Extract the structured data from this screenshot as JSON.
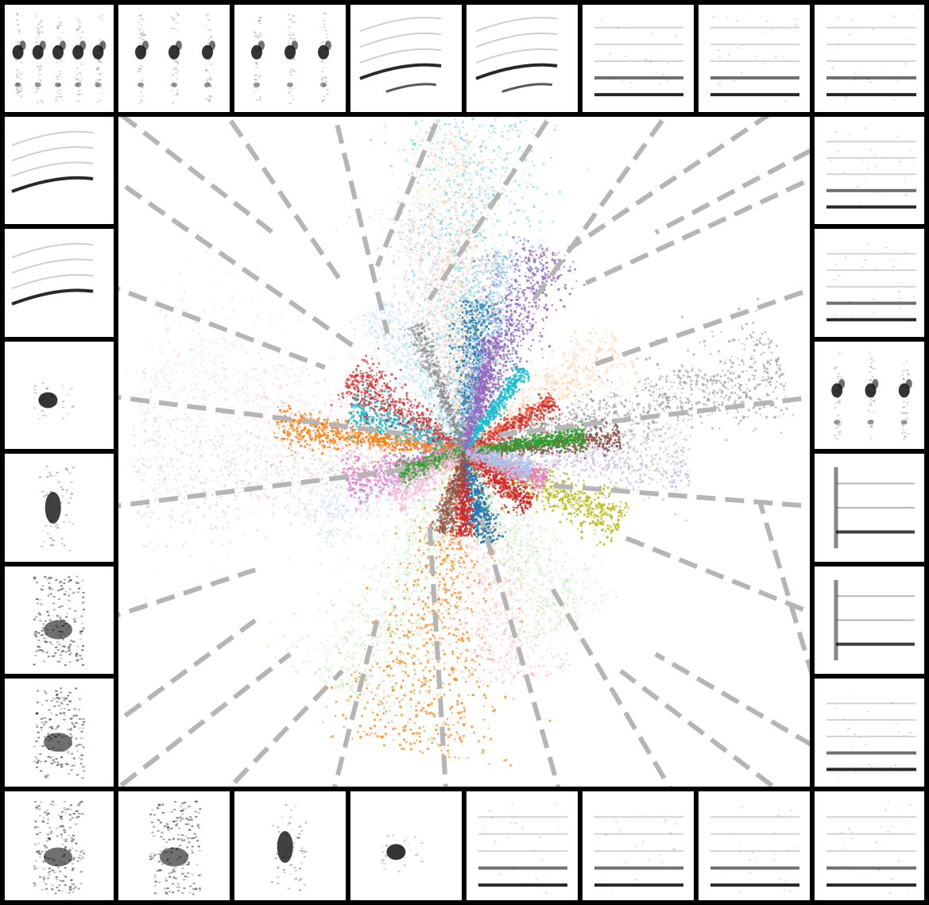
{
  "chart_data": {
    "type": "scatter",
    "title": "",
    "xlabel": "",
    "ylabel": "",
    "grid": false,
    "legend": "none",
    "axes_visible": false,
    "background": "#ffffff",
    "frame_color": "#000000",
    "connector_color": "#b5b5b5",
    "center": [
      0,
      0
    ],
    "xlim": [
      -10,
      10
    ],
    "ylim": [
      -10,
      10
    ],
    "series": [
      {
        "color": "#1f77b4",
        "angle": 85,
        "length": 4.5,
        "spread": 0.3,
        "opacity": 0.9
      },
      {
        "color": "#aec7e8",
        "angle": 80,
        "length": 6.0,
        "spread": 0.35,
        "opacity": 0.8
      },
      {
        "color": "#9467bd",
        "angle": 68,
        "length": 6.5,
        "spread": 0.4,
        "opacity": 0.8
      },
      {
        "color": "#c5b0d5",
        "angle": 100,
        "length": 7.5,
        "spread": 0.5,
        "opacity": 0.35
      },
      {
        "color": "#17becf",
        "angle": 88,
        "length": 10,
        "spread": 0.6,
        "opacity": 0.35
      },
      {
        "color": "#ffbb78",
        "angle": 92,
        "length": 9.5,
        "spread": 0.4,
        "opacity": 0.3
      },
      {
        "color": "#17becf",
        "angle": 160,
        "length": 3.5,
        "spread": 0.45,
        "opacity": 0.9
      },
      {
        "color": "#d62728",
        "angle": 145,
        "length": 4.0,
        "spread": 0.4,
        "opacity": 0.75
      },
      {
        "color": "#ff7f0e",
        "angle": 172,
        "length": 5.5,
        "spread": 0.25,
        "opacity": 0.85
      },
      {
        "color": "#f7b6d2",
        "angle": 165,
        "length": 9.5,
        "spread": 0.8,
        "opacity": 0.3
      },
      {
        "color": "#c49c94",
        "angle": 185,
        "length": 9.5,
        "spread": 0.7,
        "opacity": 0.25
      },
      {
        "color": "#e377c2",
        "angle": 195,
        "length": 3.5,
        "spread": 0.4,
        "opacity": 0.8
      },
      {
        "color": "#ff7f0e",
        "angle": 260,
        "length": 9.0,
        "spread": 0.7,
        "opacity": 0.7
      },
      {
        "color": "#ff9896",
        "angle": 280,
        "length": 7.0,
        "spread": 0.7,
        "opacity": 0.35
      },
      {
        "color": "#98df8a",
        "angle": 245,
        "length": 8.0,
        "spread": 0.7,
        "opacity": 0.3
      },
      {
        "color": "#d62728",
        "angle": 270,
        "length": 2.5,
        "spread": 0.25,
        "opacity": 0.9
      },
      {
        "color": "#1f77b4",
        "angle": 285,
        "length": 2.8,
        "spread": 0.3,
        "opacity": 0.9
      },
      {
        "color": "#bcbd22",
        "angle": 335,
        "length": 5.0,
        "spread": 0.35,
        "opacity": 0.85
      },
      {
        "color": "#d62728",
        "angle": 320,
        "length": 2.5,
        "spread": 0.35,
        "opacity": 0.9
      },
      {
        "color": "#c5b0d5",
        "angle": 358,
        "length": 6.5,
        "spread": 0.5,
        "opacity": 0.6
      },
      {
        "color": "#8c564b",
        "angle": 5,
        "length": 4.5,
        "spread": 0.2,
        "opacity": 0.9
      },
      {
        "color": "#7f7f7f",
        "angle": 15,
        "length": 9.5,
        "spread": 0.4,
        "opacity": 0.5
      },
      {
        "color": "#2ca02c",
        "angle": 8,
        "length": 3.5,
        "spread": 0.2,
        "opacity": 0.85
      },
      {
        "color": "#d62728",
        "angle": 30,
        "length": 3.0,
        "spread": 0.25,
        "opacity": 0.8
      },
      {
        "color": "#ffbb78",
        "angle": 35,
        "length": 5.5,
        "spread": 0.5,
        "opacity": 0.35
      },
      {
        "color": "#17becf",
        "angle": 55,
        "length": 3.0,
        "spread": 0.2,
        "opacity": 0.85
      },
      {
        "color": "#98df8a",
        "angle": 300,
        "length": 6.0,
        "spread": 0.6,
        "opacity": 0.3
      },
      {
        "color": "#9edae5",
        "angle": 120,
        "length": 5.0,
        "spread": 0.4,
        "opacity": 0.4
      },
      {
        "color": "#7f7f7f",
        "angle": 110,
        "length": 4.0,
        "spread": 0.2,
        "opacity": 0.5
      },
      {
        "color": "#aec7e8",
        "angle": 205,
        "length": 5.0,
        "spread": 0.5,
        "opacity": 0.3
      },
      {
        "color": "#e377c2",
        "angle": 340,
        "length": 2.5,
        "spread": 0.3,
        "opacity": 0.7
      },
      {
        "color": "#aec7e8",
        "angle": 345,
        "length": 2.0,
        "spread": 0.35,
        "opacity": 0.8
      },
      {
        "color": "#9467bd",
        "angle": 75,
        "length": 3.5,
        "spread": 0.2,
        "opacity": 0.7
      },
      {
        "color": "#2ca02c",
        "angle": 200,
        "length": 2.0,
        "spread": 0.3,
        "opacity": 0.7
      },
      {
        "color": "#f7b6d2",
        "angle": 215,
        "length": 2.5,
        "spread": 0.4,
        "opacity": 0.6
      },
      {
        "color": "#8c564b",
        "angle": 255,
        "length": 2.5,
        "spread": 0.25,
        "opacity": 0.7
      }
    ],
    "thumbnails": [
      {
        "edge": "top",
        "slot": 0,
        "kind": "harmonic-columns",
        "points_to": [
          -5.5,
          6.5
        ]
      },
      {
        "edge": "top",
        "slot": 1,
        "kind": "harmonic-columns",
        "points_to": [
          -3.5,
          5.0
        ]
      },
      {
        "edge": "top",
        "slot": 2,
        "kind": "harmonic-columns",
        "points_to": [
          -2.2,
          3.5
        ]
      },
      {
        "edge": "top",
        "slot": 3,
        "kind": "rising-harmonics",
        "points_to": [
          -2.5,
          5.5
        ]
      },
      {
        "edge": "top",
        "slot": 4,
        "kind": "rising-harmonics",
        "points_to": [
          -1.0,
          4.5
        ]
      },
      {
        "edge": "top",
        "slot": 5,
        "kind": "flat-harmonics",
        "points_to": [
          2.0,
          4.5
        ]
      },
      {
        "edge": "top",
        "slot": 6,
        "kind": "flat-harmonics",
        "points_to": [
          3.0,
          6.0
        ]
      },
      {
        "edge": "top",
        "slot": 7,
        "kind": "flat-harmonics",
        "points_to": [
          5.5,
          6.5
        ]
      },
      {
        "edge": "left",
        "slot": 1,
        "kind": "rising-harmonics",
        "points_to": [
          -3.0,
          3.0
        ]
      },
      {
        "edge": "left",
        "slot": 2,
        "kind": "rising-harmonics",
        "points_to": [
          -4.0,
          2.5
        ]
      },
      {
        "edge": "left",
        "slot": 3,
        "kind": "blob",
        "points_to": [
          -1.5,
          0.5
        ]
      },
      {
        "edge": "left",
        "slot": 4,
        "kind": "vertical-blob",
        "points_to": [
          -1.5,
          -0.5
        ]
      },
      {
        "edge": "left",
        "slot": 5,
        "kind": "noisy-column",
        "points_to": [
          -6.0,
          -3.5
        ]
      },
      {
        "edge": "left",
        "slot": 6,
        "kind": "noisy-column",
        "points_to": [
          -6.0,
          -5.0
        ]
      },
      {
        "edge": "bottom",
        "slot": 0,
        "kind": "noisy-column",
        "points_to": [
          -5.0,
          -6.0
        ]
      },
      {
        "edge": "bottom",
        "slot": 1,
        "kind": "noisy-column",
        "points_to": [
          -3.5,
          -6.5
        ]
      },
      {
        "edge": "bottom",
        "slot": 2,
        "kind": "vertical-blob",
        "points_to": [
          -2.5,
          -5.0
        ]
      },
      {
        "edge": "bottom",
        "slot": 3,
        "kind": "blob",
        "points_to": [
          -1.0,
          -2.0
        ]
      },
      {
        "edge": "bottom",
        "slot": 4,
        "kind": "flat-harmonics",
        "points_to": [
          0.5,
          -2.0
        ]
      },
      {
        "edge": "bottom",
        "slot": 5,
        "kind": "flat-harmonics",
        "points_to": [
          2.5,
          -4.0
        ]
      },
      {
        "edge": "bottom",
        "slot": 6,
        "kind": "flat-harmonics",
        "points_to": [
          4.5,
          -6.5
        ]
      },
      {
        "edge": "bottom",
        "slot": 7,
        "kind": "flat-harmonics",
        "points_to": [
          5.5,
          -6.0
        ]
      },
      {
        "edge": "right",
        "slot": 1,
        "kind": "flat-harmonics",
        "points_to": [
          3.5,
          5.0
        ]
      },
      {
        "edge": "right",
        "slot": 2,
        "kind": "flat-harmonics",
        "points_to": [
          3.5,
          2.5
        ]
      },
      {
        "edge": "right",
        "slot": 3,
        "kind": "harmonic-columns",
        "points_to": [
          1.0,
          0.5
        ]
      },
      {
        "edge": "right",
        "slot": 4,
        "kind": "step-harmonics",
        "points_to": [
          2.5,
          -1.0
        ]
      },
      {
        "edge": "right",
        "slot": 5,
        "kind": "step-harmonics",
        "points_to": [
          4.5,
          -2.5
        ]
      },
      {
        "edge": "right",
        "slot": 6,
        "kind": "flat-harmonics",
        "points_to": [
          8.5,
          -1.5
        ]
      }
    ]
  }
}
